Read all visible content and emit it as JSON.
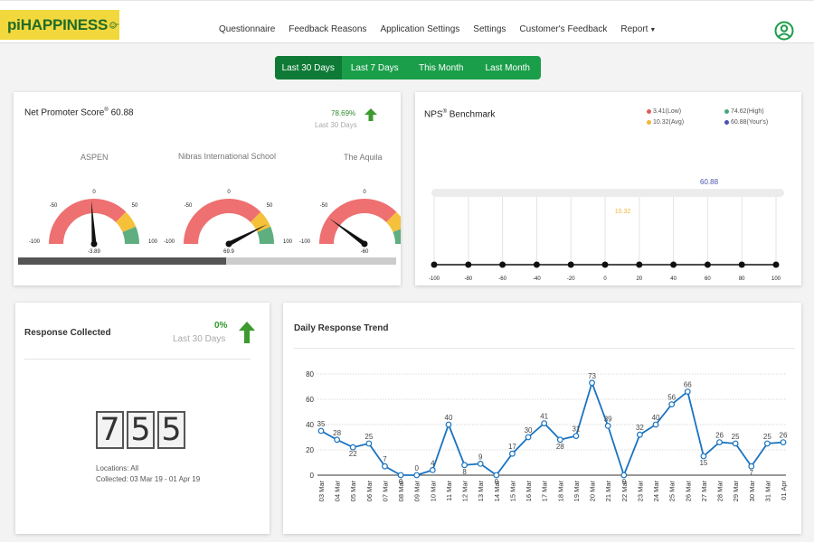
{
  "header": {
    "logo_text": "piHAPPINESS",
    "nav": [
      {
        "label": "Questionnaire"
      },
      {
        "label": "Feedback Reasons"
      },
      {
        "label": "Application Settings"
      },
      {
        "label": "Settings"
      },
      {
        "label": "Customer's Feedback"
      },
      {
        "label": "Report"
      }
    ],
    "icons": {
      "user": "user-circle-icon",
      "report_dropdown": "caret-down-icon"
    }
  },
  "range_tabs": [
    {
      "label": "Last 30 Days",
      "active": true
    },
    {
      "label": "Last 7 Days",
      "active": false
    },
    {
      "label": "This Month",
      "active": false
    },
    {
      "label": "Last Month",
      "active": false
    }
  ],
  "nps_card": {
    "title": "Net Promoter Score",
    "title_sup": "®",
    "score": "60.88",
    "change": "78.69%",
    "period": "Last 30 Days",
    "gauges": [
      {
        "name": "ASPEN",
        "value": -3.89,
        "value_label": "-3.89"
      },
      {
        "name": "Nibras International School",
        "value": 69.9,
        "value_label": "69.9"
      },
      {
        "name": "The Aquila",
        "value": -60,
        "value_label": "-60"
      }
    ],
    "gauge_ticks": {
      "zero": "0",
      "neg50": "-50",
      "pos50": "50",
      "min": "-100",
      "max": "100"
    },
    "scroll_fraction": 0.55
  },
  "benchmark_card": {
    "title": "NPS",
    "title_sup": "®",
    "title_suffix": "Benchmark",
    "legend": [
      {
        "label": "3.41(Low)",
        "color": "#e0605a"
      },
      {
        "label": "10.32(Avg)",
        "color": "#f0b73a"
      },
      {
        "label": "74.62(High)",
        "color": "#4aa57a"
      },
      {
        "label": "60.88(Your's)",
        "color": "#4a52b0"
      }
    ],
    "your_value_label": "60.88",
    "avg_value_label": "10.32",
    "axis_ticks": [
      "-100",
      "-80",
      "-60",
      "-40",
      "-20",
      "0",
      "20",
      "40",
      "60",
      "80",
      "100"
    ],
    "your_color": "#4a52b0",
    "avg_color": "#f0b73a"
  },
  "response_card": {
    "title": "Response Collected",
    "change": "0%",
    "period": "Last 30 Days",
    "digits": [
      "7",
      "5",
      "5"
    ],
    "locations": "Locations: All",
    "collected": "Collected: 03 Mar 19 - 01 Apr 19"
  },
  "trend_card": {
    "title": "Daily Response Trend",
    "line_color": "#1a73c0"
  },
  "chart_data": {
    "type": "line",
    "title": "Daily Response Trend",
    "xlabel": "",
    "ylabel": "",
    "ylim": [
      0,
      80
    ],
    "yticks": [
      0,
      20,
      40,
      60,
      80
    ],
    "grid": true,
    "categories": [
      "03 Mar",
      "04 Mar",
      "05 Mar",
      "06 Mar",
      "07 Mar",
      "08 Mar",
      "09 Mar",
      "10 Mar",
      "11 Mar",
      "12 Mar",
      "13 Mar",
      "14 Mar",
      "15 Mar",
      "16 Mar",
      "17 Mar",
      "18 Mar",
      "19 Mar",
      "20 Mar",
      "21 Mar",
      "22 Mar",
      "23 Mar",
      "24 Mar",
      "25 Mar",
      "26 Mar",
      "27 Mar",
      "28 Mar",
      "29 Mar",
      "30 Mar",
      "31 Mar",
      "01 Apr"
    ],
    "values": [
      35,
      28,
      22,
      25,
      7,
      0,
      0,
      4,
      40,
      8,
      9,
      0,
      17,
      30,
      41,
      28,
      31,
      73,
      39,
      0,
      32,
      40,
      56,
      66,
      15,
      26,
      25,
      7,
      25,
      26
    ]
  }
}
